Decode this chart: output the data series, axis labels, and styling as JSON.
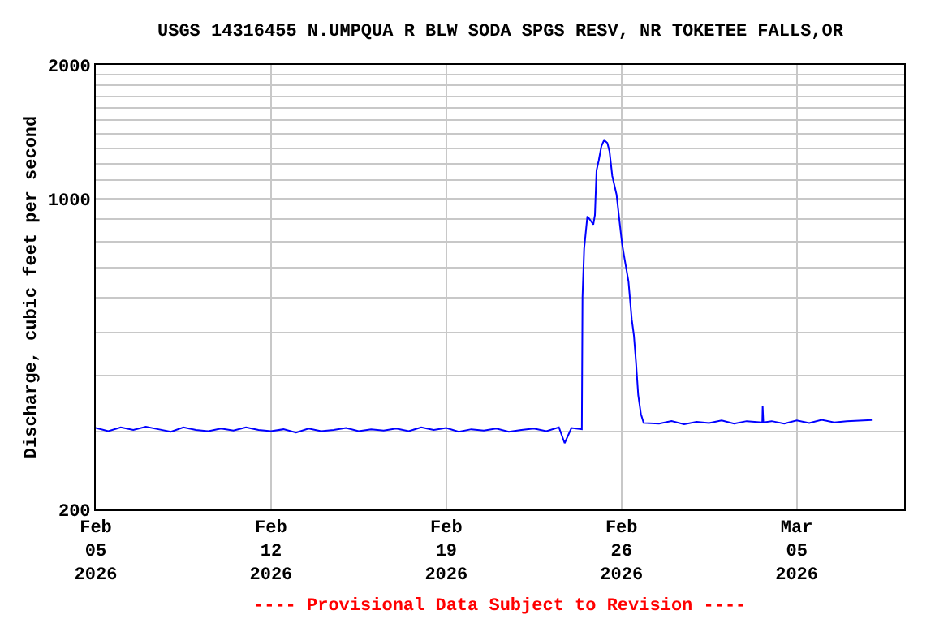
{
  "chart_data": {
    "type": "line",
    "title": "USGS 14316455 N.UMPQUA R BLW SODA SPGS RESV, NR TOKETEE FALLS,OR",
    "ylabel": "Discharge, cubic feet per second",
    "x": [
      "2026-02-05T00:00",
      "2026-02-05T12:00",
      "2026-02-06T00:00",
      "2026-02-06T12:00",
      "2026-02-07T00:00",
      "2026-02-07T12:00",
      "2026-02-08T00:00",
      "2026-02-08T12:00",
      "2026-02-09T00:00",
      "2026-02-09T12:00",
      "2026-02-10T00:00",
      "2026-02-10T12:00",
      "2026-02-11T00:00",
      "2026-02-11T12:00",
      "2026-02-12T00:00",
      "2026-02-12T12:00",
      "2026-02-13T00:00",
      "2026-02-13T12:00",
      "2026-02-14T00:00",
      "2026-02-14T12:00",
      "2026-02-15T00:00",
      "2026-02-15T12:00",
      "2026-02-16T00:00",
      "2026-02-16T12:00",
      "2026-02-17T00:00",
      "2026-02-17T12:00",
      "2026-02-18T00:00",
      "2026-02-18T12:00",
      "2026-02-19T00:00",
      "2026-02-19T12:00",
      "2026-02-20T00:00",
      "2026-02-20T12:00",
      "2026-02-21T00:00",
      "2026-02-21T12:00",
      "2026-02-22T00:00",
      "2026-02-22T12:00",
      "2026-02-23T00:00",
      "2026-02-23T12:00",
      "2026-02-23T17:30",
      "2026-02-24T00:00",
      "2026-02-24T10:00",
      "2026-02-24T10:38",
      "2026-02-24T12:12",
      "2026-02-24T15:17",
      "2026-02-24T17:22",
      "2026-02-24T21:00",
      "2026-02-24T22:33",
      "2026-02-25T00:06",
      "2026-02-25T02:11",
      "2026-02-25T04:46",
      "2026-02-25T07:22",
      "2026-02-25T10:28",
      "2026-02-25T12:33",
      "2026-02-25T15:09",
      "2026-02-25T19:17",
      "2026-02-25T21:53",
      "2026-02-26T00:29",
      "2026-02-26T03:04",
      "2026-02-26T06:42",
      "2026-02-26T09:49",
      "2026-02-26T11:53",
      "2026-02-26T13:57",
      "2026-02-26T16:02",
      "2026-02-26T18:37",
      "2026-02-26T21:13",
      "2026-02-27T12:00",
      "2026-02-28T00:00",
      "2026-02-28T12:00",
      "2026-03-01T00:00",
      "2026-03-01T12:00",
      "2026-03-02T00:00",
      "2026-03-02T12:00",
      "2026-03-03T00:00",
      "2026-03-03T15:00",
      "2026-03-03T15:20",
      "2026-03-03T16:00",
      "2026-03-04T00:00",
      "2026-03-04T12:00",
      "2026-03-05T00:00",
      "2026-03-05T12:00",
      "2026-03-06T00:00",
      "2026-03-06T12:00",
      "2026-03-07T00:00",
      "2026-03-07T12:00",
      "2026-03-08T00:00"
    ],
    "series": [
      {
        "color": "#0000ff",
        "values": [
          305,
          300,
          306,
          302,
          307,
          303,
          299,
          306,
          302,
          300,
          304,
          301,
          306,
          302,
          300,
          303,
          298,
          304,
          300,
          302,
          305,
          300,
          303,
          301,
          304,
          300,
          306,
          302,
          305,
          299,
          303,
          301,
          304,
          299,
          302,
          304,
          300,
          306,
          282,
          305,
          303,
          600,
          772,
          913,
          900,
          875,
          920,
          1158,
          1218,
          1314,
          1355,
          1335,
          1277,
          1126,
          1021,
          900,
          794,
          730,
          652,
          536,
          493,
          428,
          362,
          328,
          313,
          312,
          316,
          311,
          315,
          313,
          317,
          312,
          316,
          314,
          341,
          314,
          316,
          312,
          317,
          313,
          318,
          314,
          316,
          317,
          318
        ]
      }
    ],
    "ylim": [
      200,
      2000
    ],
    "log": true,
    "yticks": [
      200,
      {
        "value": 300,
        "label": null
      },
      {
        "value": 400,
        "label": null
      },
      {
        "value": 500,
        "label": null
      },
      {
        "value": 600,
        "label": null
      },
      {
        "value": 700,
        "label": null
      },
      {
        "value": 800,
        "label": null
      },
      {
        "value": 900,
        "label": null
      },
      1000,
      {
        "value": 1100,
        "label": null
      },
      {
        "value": 1200,
        "label": null
      },
      {
        "value": 1300,
        "label": null
      },
      {
        "value": 1400,
        "label": null
      },
      {
        "value": 1500,
        "label": null
      },
      {
        "value": 1600,
        "label": null
      },
      {
        "value": 1700,
        "label": null
      },
      {
        "value": 1800,
        "label": null
      },
      {
        "value": 1900,
        "label": null
      },
      2000
    ],
    "xlim": [
      "2026-02-05T00:00",
      "2026-03-09T07:00"
    ],
    "xticks": [
      {
        "value": "2026-02-05",
        "label": "Feb\n05\n2026"
      },
      {
        "value": "2026-02-12",
        "label": "Feb\n12\n2026"
      },
      {
        "value": "2026-02-19",
        "label": "Feb\n19\n2026"
      },
      {
        "value": "2026-02-26",
        "label": "Feb\n26\n2026"
      },
      {
        "value": "2026-03-05",
        "label": "Mar\n05\n2026"
      }
    ],
    "grid": true,
    "marker": "none",
    "line_style": "solid",
    "annotations": [
      "---- Provisional Data Subject to Revision ----"
    ]
  }
}
